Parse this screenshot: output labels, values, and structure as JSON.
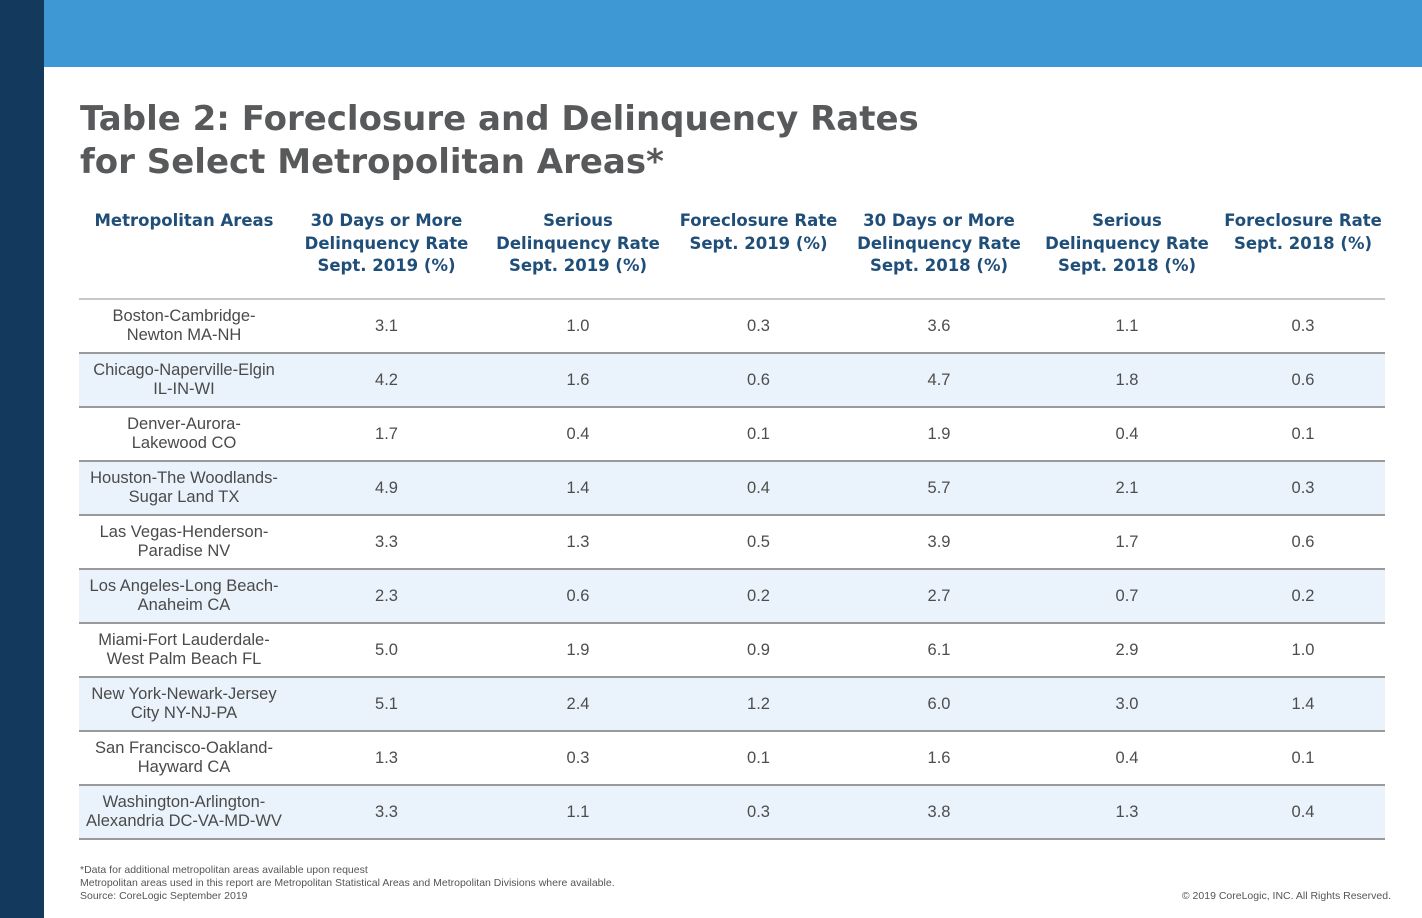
{
  "title": "Table 2: Foreclosure and Delinquency Rates\nfor Select Metropolitan Areas*",
  "colors": {
    "top_band": "#3e98d3",
    "side_bar": "#133a5c",
    "header_text": "#1f4e79",
    "row_alt": "#eaf3fb"
  },
  "table": {
    "headers": [
      "Metropolitan Areas",
      "30 Days or More\nDelinquency Rate\nSept. 2019 (%)",
      "Serious\nDelinquency Rate\nSept. 2019 (%)",
      "Foreclosure Rate\nSept. 2019 (%)",
      "30 Days or More\nDelinquency Rate\nSept. 2018 (%)",
      "Serious\nDelinquency Rate\nSept. 2018 (%)",
      "Foreclosure Rate\nSept. 2018 (%)"
    ],
    "rows": [
      [
        "Boston-Cambridge-\nNewton MA-NH",
        "3.1",
        "1.0",
        "0.3",
        "3.6",
        "1.1",
        "0.3"
      ],
      [
        "Chicago-Naperville-Elgin\nIL-IN-WI",
        "4.2",
        "1.6",
        "0.6",
        "4.7",
        "1.8",
        "0.6"
      ],
      [
        "Denver-Aurora-\nLakewood CO",
        "1.7",
        "0.4",
        "0.1",
        "1.9",
        "0.4",
        "0.1"
      ],
      [
        "Houston-The Woodlands-\nSugar Land TX",
        "4.9",
        "1.4",
        "0.4",
        "5.7",
        "2.1",
        "0.3"
      ],
      [
        "Las Vegas-Henderson-\nParadise NV",
        "3.3",
        "1.3",
        "0.5",
        "3.9",
        "1.7",
        "0.6"
      ],
      [
        "Los Angeles-Long Beach-\nAnaheim CA",
        "2.3",
        "0.6",
        "0.2",
        "2.7",
        "0.7",
        "0.2"
      ],
      [
        "Miami-Fort Lauderdale-\nWest Palm Beach FL",
        "5.0",
        "1.9",
        "0.9",
        "6.1",
        "2.9",
        "1.0"
      ],
      [
        "New York-Newark-Jersey\nCity NY-NJ-PA",
        "5.1",
        "2.4",
        "1.2",
        "6.0",
        "3.0",
        "1.4"
      ],
      [
        "San Francisco-Oakland-\nHayward CA",
        "1.3",
        "0.3",
        "0.1",
        "1.6",
        "0.4",
        "0.1"
      ],
      [
        "Washington-Arlington-\nAlexandria DC-VA-MD-WV",
        "3.3",
        "1.1",
        "0.3",
        "3.8",
        "1.3",
        "0.4"
      ]
    ]
  },
  "footnotes": [
    "*Data for additional metropolitan areas available upon request",
    "Metropolitan areas used in this report are Metropolitan Statistical Areas and Metropolitan Divisions where available.",
    "Source: CoreLogic September 2019"
  ],
  "copyright": "© 2019 CoreLogic, INC. All Rights Reserved."
}
